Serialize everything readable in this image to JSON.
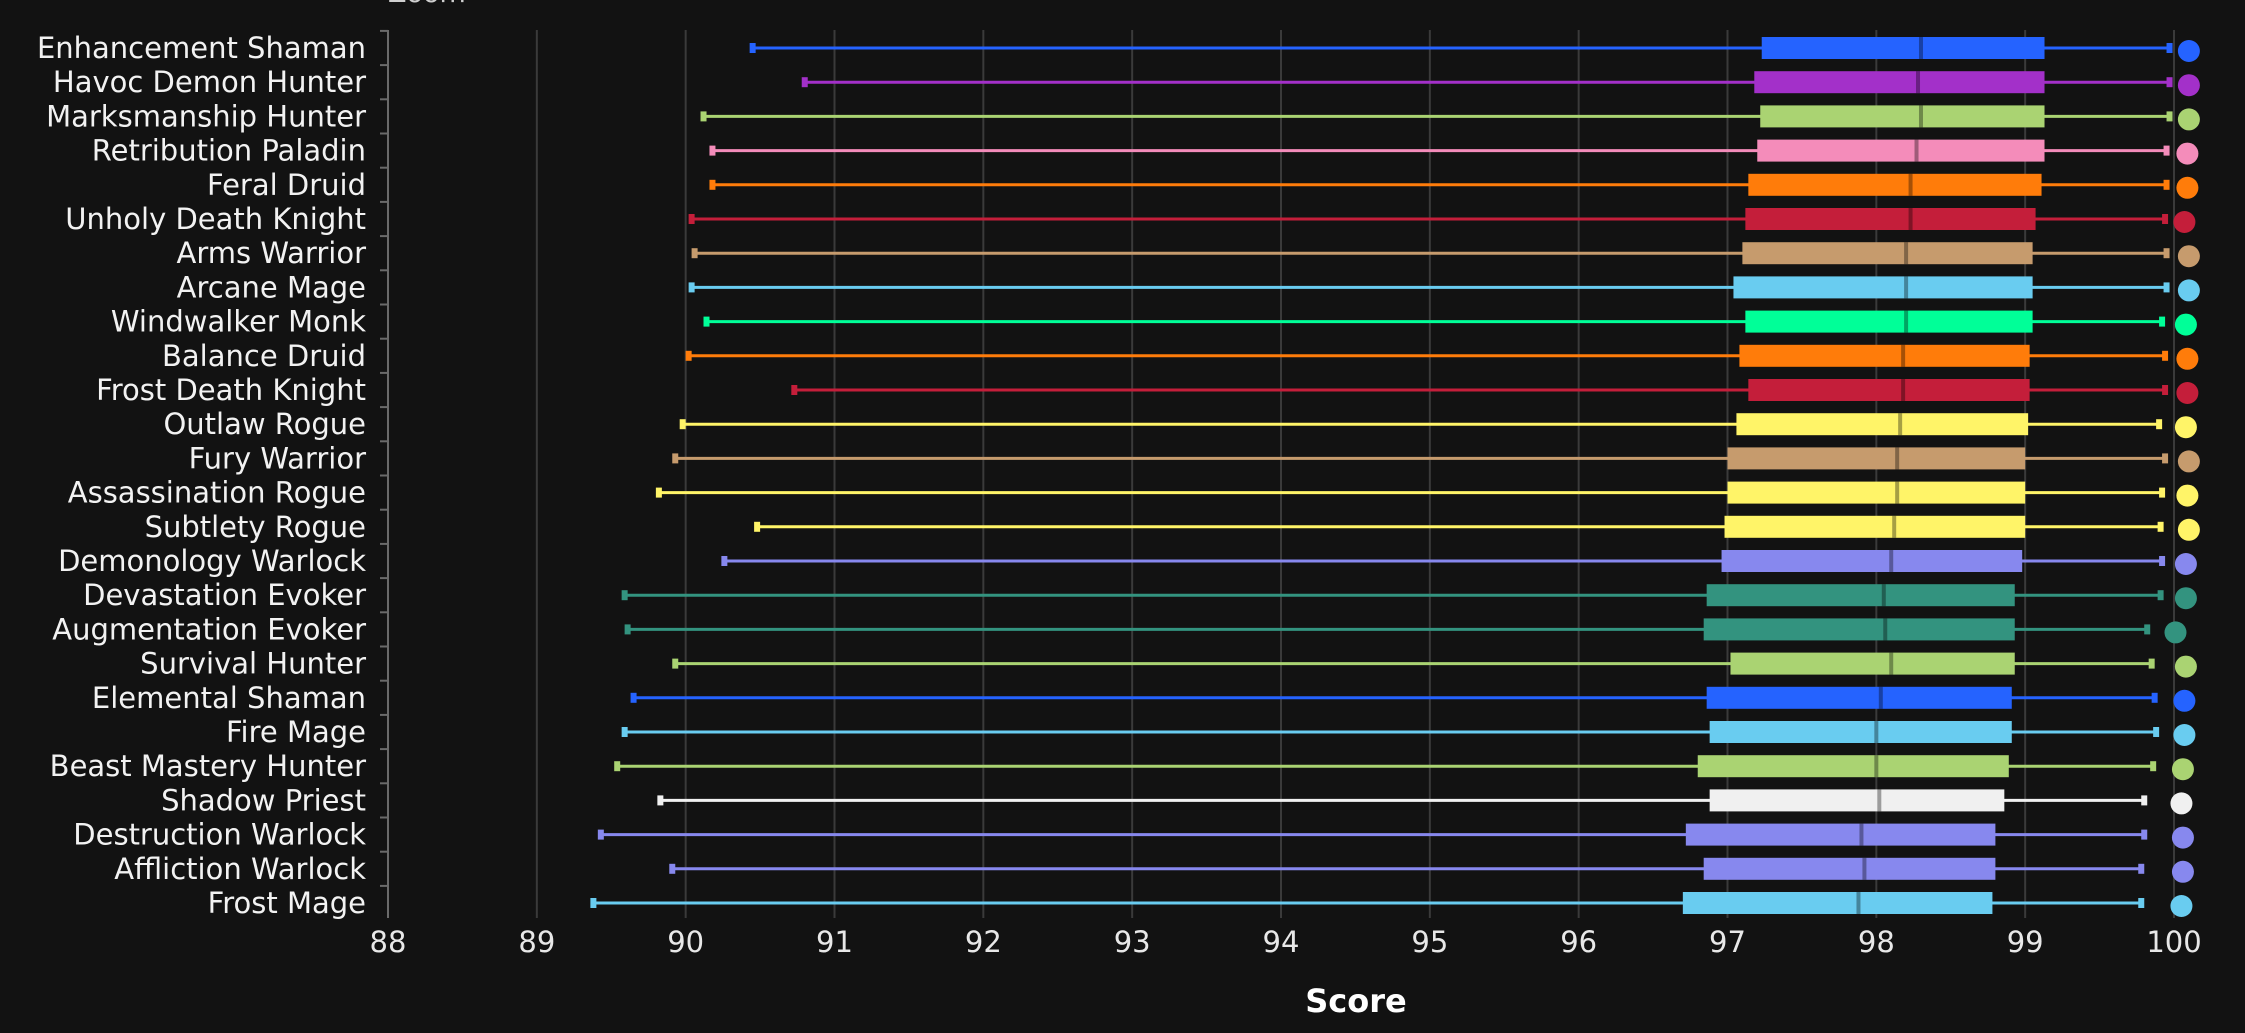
{
  "header": {
    "zoom_label": "Zoom"
  },
  "chart_data": {
    "type": "boxplot",
    "xlabel": "Score",
    "xlim": [
      88,
      100
    ],
    "x_ticks": [
      "88",
      "89",
      "90",
      "91",
      "92",
      "93",
      "94",
      "95",
      "96",
      "97",
      "98",
      "99",
      "100"
    ],
    "grid": true,
    "legend": "none",
    "series": [
      {
        "name": "Enhancement Shaman",
        "color": "#2563ff",
        "min": 90.45,
        "q1": 97.23,
        "median": 98.3,
        "q3": 99.13,
        "max": 99.97,
        "point": 100.1
      },
      {
        "name": "Havoc Demon Hunter",
        "color": "#a330c9",
        "min": 90.8,
        "q1": 97.18,
        "median": 98.28,
        "q3": 99.13,
        "max": 99.97,
        "point": 100.1
      },
      {
        "name": "Marksmanship Hunter",
        "color": "#aad372",
        "min": 90.12,
        "q1": 97.22,
        "median": 98.3,
        "q3": 99.13,
        "max": 99.97,
        "point": 100.1
      },
      {
        "name": "Retribution Paladin",
        "color": "#f48cba",
        "min": 90.18,
        "q1": 97.2,
        "median": 98.27,
        "q3": 99.13,
        "max": 99.95,
        "point": 100.09
      },
      {
        "name": "Feral Druid",
        "color": "#ff7c0a",
        "min": 90.18,
        "q1": 97.14,
        "median": 98.23,
        "q3": 99.11,
        "max": 99.95,
        "point": 100.09
      },
      {
        "name": "Unholy Death Knight",
        "color": "#c41e3a",
        "min": 90.04,
        "q1": 97.12,
        "median": 98.23,
        "q3": 99.07,
        "max": 99.94,
        "point": 100.07
      },
      {
        "name": "Arms Warrior",
        "color": "#c69b6d",
        "min": 90.06,
        "q1": 97.1,
        "median": 98.2,
        "q3": 99.05,
        "max": 99.95,
        "point": 100.1
      },
      {
        "name": "Arcane Mage",
        "color": "#69ccf0",
        "min": 90.04,
        "q1": 97.04,
        "median": 98.2,
        "q3": 99.05,
        "max": 99.95,
        "point": 100.1
      },
      {
        "name": "Windwalker Monk",
        "color": "#00ff98",
        "min": 90.14,
        "q1": 97.12,
        "median": 98.2,
        "q3": 99.05,
        "max": 99.92,
        "point": 100.08
      },
      {
        "name": "Balance Druid",
        "color": "#ff7c0a",
        "min": 90.02,
        "q1": 97.08,
        "median": 98.18,
        "q3": 99.03,
        "max": 99.94,
        "point": 100.09
      },
      {
        "name": "Frost Death Knight",
        "color": "#c41e3a",
        "min": 90.73,
        "q1": 97.14,
        "median": 98.18,
        "q3": 99.03,
        "max": 99.94,
        "point": 100.09
      },
      {
        "name": "Outlaw Rogue",
        "color": "#fff468",
        "min": 89.98,
        "q1": 97.06,
        "median": 98.16,
        "q3": 99.02,
        "max": 99.9,
        "point": 100.08
      },
      {
        "name": "Fury Warrior",
        "color": "#c69b6d",
        "min": 89.93,
        "q1": 97.0,
        "median": 98.14,
        "q3": 99.0,
        "max": 99.94,
        "point": 100.1
      },
      {
        "name": "Assassination Rogue",
        "color": "#fff468",
        "min": 89.82,
        "q1": 97.0,
        "median": 98.14,
        "q3": 99.0,
        "max": 99.92,
        "point": 100.09
      },
      {
        "name": "Subtlety Rogue",
        "color": "#fff468",
        "min": 90.48,
        "q1": 96.98,
        "median": 98.12,
        "q3": 99.0,
        "max": 99.91,
        "point": 100.1
      },
      {
        "name": "Demonology Warlock",
        "color": "#8788ee",
        "min": 90.26,
        "q1": 96.96,
        "median": 98.1,
        "q3": 98.98,
        "max": 99.92,
        "point": 100.08
      },
      {
        "name": "Devastation Evoker",
        "color": "#33937f",
        "min": 89.59,
        "q1": 96.86,
        "median": 98.05,
        "q3": 98.93,
        "max": 99.91,
        "point": 100.08
      },
      {
        "name": "Augmentation Evoker",
        "color": "#33937f",
        "min": 89.61,
        "q1": 96.84,
        "median": 98.06,
        "q3": 98.93,
        "max": 99.82,
        "point": 100.01
      },
      {
        "name": "Survival Hunter",
        "color": "#aad372",
        "min": 89.93,
        "q1": 97.02,
        "median": 98.1,
        "q3": 98.93,
        "max": 99.85,
        "point": 100.08
      },
      {
        "name": "Elemental Shaman",
        "color": "#2563ff",
        "min": 89.65,
        "q1": 96.86,
        "median": 98.03,
        "q3": 98.91,
        "max": 99.87,
        "point": 100.07
      },
      {
        "name": "Fire Mage",
        "color": "#69ccf0",
        "min": 89.59,
        "q1": 96.88,
        "median": 98.0,
        "q3": 98.91,
        "max": 99.88,
        "point": 100.07
      },
      {
        "name": "Beast Mastery Hunter",
        "color": "#aad372",
        "min": 89.54,
        "q1": 96.8,
        "median": 98.0,
        "q3": 98.89,
        "max": 99.86,
        "point": 100.06
      },
      {
        "name": "Shadow Priest",
        "color": "#f0f0f0",
        "min": 89.83,
        "q1": 96.88,
        "median": 98.02,
        "q3": 98.86,
        "max": 99.8,
        "point": 100.05
      },
      {
        "name": "Destruction Warlock",
        "color": "#8788ee",
        "min": 89.43,
        "q1": 96.72,
        "median": 97.9,
        "q3": 98.8,
        "max": 99.8,
        "point": 100.06
      },
      {
        "name": "Affliction Warlock",
        "color": "#8788ee",
        "min": 89.91,
        "q1": 96.84,
        "median": 97.92,
        "q3": 98.8,
        "max": 99.78,
        "point": 100.06
      },
      {
        "name": "Frost Mage",
        "color": "#69ccf0",
        "min": 89.38,
        "q1": 96.7,
        "median": 97.88,
        "q3": 98.78,
        "max": 99.78,
        "point": 100.05
      }
    ]
  }
}
